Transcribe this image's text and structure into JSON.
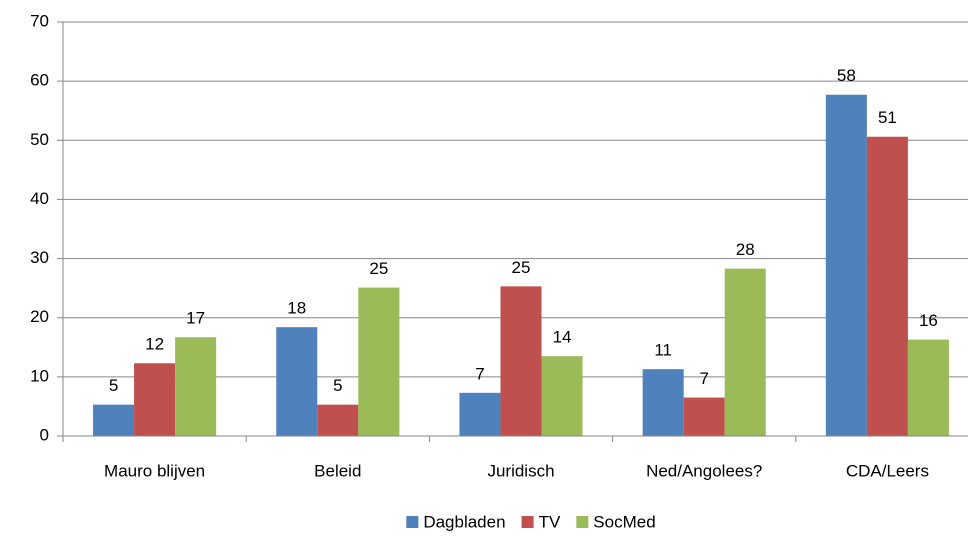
{
  "chart_data": {
    "type": "bar",
    "categories": [
      "Mauro blijven",
      "Beleid",
      "Juridisch",
      "Ned/Angolees?",
      "CDA/Leers"
    ],
    "series": [
      {
        "name": "Dagbladen",
        "color": "#4f81bd",
        "values": [
          5.3,
          18.4,
          7.3,
          11.3,
          57.7
        ],
        "value_labels": [
          "5",
          "18",
          "7",
          "11",
          "58"
        ]
      },
      {
        "name": "TV",
        "color": "#c0504d",
        "values": [
          12.3,
          5.3,
          25.3,
          6.5,
          50.6
        ],
        "value_labels": [
          "12",
          "5",
          "25",
          "7",
          "51"
        ]
      },
      {
        "name": "SocMed",
        "color": "#9bbb59",
        "values": [
          16.7,
          25.1,
          13.5,
          28.3,
          16.3
        ],
        "value_labels": [
          "17",
          "25",
          "14",
          "28",
          "16"
        ]
      }
    ],
    "ylim": [
      0,
      70
    ],
    "yticks": [
      0,
      10,
      20,
      30,
      40,
      50,
      60,
      70
    ],
    "grid": true,
    "legend": "bottom"
  }
}
